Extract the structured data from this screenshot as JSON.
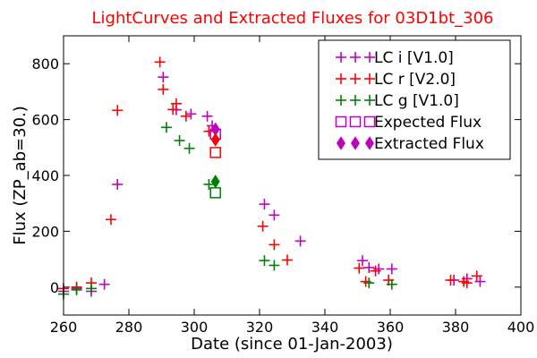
{
  "chart_data": {
    "type": "scatter",
    "title": "LightCurves and Extracted Fluxes for 03D1bt_306",
    "title_color": "#ff0000",
    "xlabel": "Date (since 01-Jan-2003)",
    "ylabel": "Flux (ZP_ab=30.)",
    "xlim": [
      260,
      400
    ],
    "ylim": [
      -100,
      900
    ],
    "x_ticks": [
      260,
      280,
      300,
      320,
      340,
      360,
      380,
      400
    ],
    "y_ticks": [
      0,
      200,
      400,
      600,
      800
    ],
    "grid": false,
    "legend_position": "top-right",
    "series": [
      {
        "name": "LC i [V1.0]",
        "marker": "plus",
        "color": "#bf00bf",
        "points": [
          [
            260,
            -15
          ],
          [
            264,
            -5
          ],
          [
            268.5,
            -15
          ],
          [
            272.5,
            10
          ],
          [
            276.5,
            368
          ],
          [
            290.5,
            752
          ],
          [
            294.5,
            635
          ],
          [
            299,
            620
          ],
          [
            304,
            612
          ],
          [
            305.5,
            578
          ],
          [
            321.5,
            297
          ],
          [
            324.5,
            258
          ],
          [
            332.5,
            165
          ],
          [
            351.5,
            95
          ],
          [
            353.5,
            70
          ],
          [
            356.5,
            65
          ],
          [
            360.5,
            65
          ],
          [
            379.5,
            25
          ],
          [
            383.5,
            30
          ],
          [
            387.5,
            20
          ]
        ]
      },
      {
        "name": "LC r [V2.0]",
        "marker": "plus",
        "color": "#ff0000",
        "points": [
          [
            260,
            -5
          ],
          [
            264,
            0
          ],
          [
            268.5,
            15
          ],
          [
            274.5,
            242
          ],
          [
            276.5,
            633
          ],
          [
            289.5,
            806
          ],
          [
            290.5,
            708
          ],
          [
            293.5,
            636
          ],
          [
            294.5,
            657
          ],
          [
            297.5,
            612
          ],
          [
            304.5,
            558
          ],
          [
            321,
            218
          ],
          [
            324.5,
            152
          ],
          [
            328.5,
            97
          ],
          [
            350.5,
            68
          ],
          [
            352.5,
            20
          ],
          [
            355.5,
            58
          ],
          [
            359.5,
            25
          ],
          [
            378.5,
            25
          ],
          [
            382.5,
            20
          ],
          [
            383.5,
            15
          ],
          [
            386.5,
            40
          ]
        ]
      },
      {
        "name": "LC g [V1.0]",
        "marker": "plus",
        "color": "#008000",
        "points": [
          [
            260,
            -25
          ],
          [
            264,
            -10
          ],
          [
            268.5,
            -5
          ],
          [
            291.5,
            572
          ],
          [
            295.5,
            525
          ],
          [
            298.5,
            497
          ],
          [
            304.5,
            368
          ],
          [
            321.5,
            95
          ],
          [
            324.5,
            78
          ],
          [
            353.5,
            15
          ],
          [
            360.5,
            10
          ]
        ]
      },
      {
        "name": "Expected Flux",
        "marker": "open-square",
        "color": "#bf00bf",
        "points": [
          [
            306.5,
            548
          ]
        ],
        "extra_points": [
          {
            "x": 306.5,
            "y": 482,
            "color": "#ff0000"
          },
          {
            "x": 306.5,
            "y": 338,
            "color": "#008000"
          }
        ]
      },
      {
        "name": "Extracted Flux",
        "marker": "filled-diamond",
        "color": "#bf00bf",
        "points": [
          [
            306.5,
            565
          ]
        ],
        "extra_points": [
          {
            "x": 306.5,
            "y": 528,
            "color": "#ff0000"
          },
          {
            "x": 306.5,
            "y": 378,
            "color": "#008000"
          }
        ]
      }
    ]
  }
}
